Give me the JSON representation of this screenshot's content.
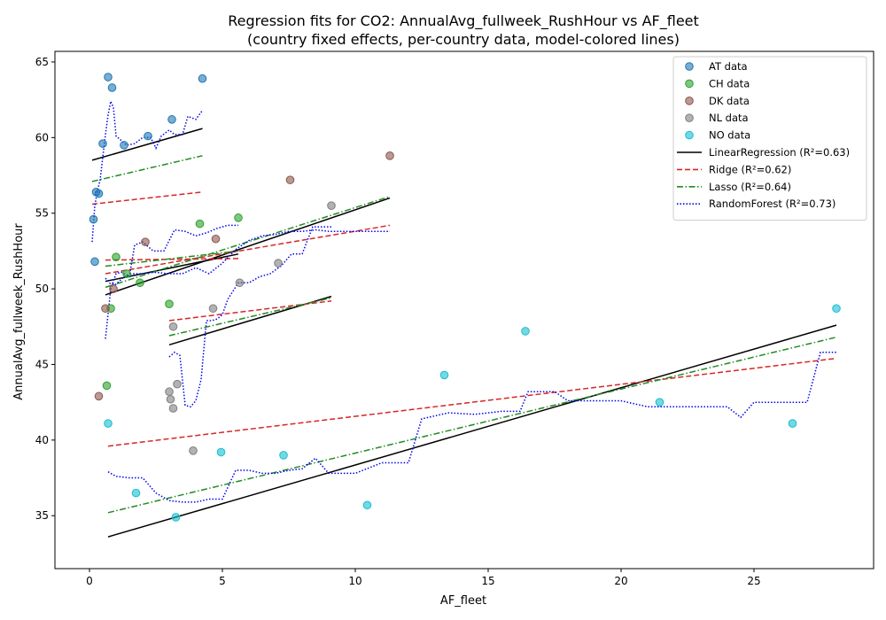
{
  "chart_data": {
    "type": "scatter",
    "title": "Regression fits for CO2: AnnualAvg_fullweek_RushHour vs AF_fleet",
    "subtitle": "(country fixed effects, per-country data, model-colored lines)",
    "xlabel": "AF_fleet",
    "ylabel": "AnnualAvg_fullweek_RushHour",
    "xlim": [
      -1.3,
      29.5
    ],
    "ylim": [
      31.5,
      65.7
    ],
    "xticks": [
      0,
      5,
      10,
      15,
      20,
      25
    ],
    "yticks": [
      35,
      40,
      45,
      50,
      55,
      60,
      65
    ],
    "legend_position": "top-right",
    "series": [
      {
        "name": "AT data",
        "kind": "scatter",
        "color": "#1f77b4",
        "x": [
          0.15,
          0.2,
          0.25,
          0.35,
          0.5,
          0.7,
          0.85,
          1.3,
          2.2,
          3.1,
          4.25
        ],
        "y": [
          54.6,
          51.8,
          56.4,
          56.3,
          59.6,
          64.0,
          63.3,
          59.5,
          60.1,
          61.2,
          63.9
        ]
      },
      {
        "name": "CH data",
        "kind": "scatter",
        "color": "#2ca02c",
        "x": [
          0.65,
          0.8,
          1.0,
          1.4,
          1.9,
          3.0,
          4.15,
          5.6
        ],
        "y": [
          43.6,
          48.7,
          52.1,
          51.0,
          50.4,
          49.0,
          54.3,
          54.7
        ]
      },
      {
        "name": "DK data",
        "kind": "scatter",
        "color": "#8c564b",
        "x": [
          0.35,
          0.6,
          0.9,
          2.1,
          4.75,
          7.55,
          11.3
        ],
        "y": [
          42.9,
          48.7,
          50.0,
          53.1,
          53.3,
          57.2,
          58.8
        ]
      },
      {
        "name": "NL data",
        "kind": "scatter",
        "color": "#7f7f7f",
        "x": [
          3.0,
          3.05,
          3.15,
          3.15,
          3.3,
          3.9,
          4.65,
          5.65,
          7.1,
          9.1
        ],
        "y": [
          43.2,
          42.7,
          42.1,
          47.5,
          43.7,
          39.3,
          48.7,
          50.4,
          51.7,
          55.5
        ]
      },
      {
        "name": "NO data",
        "kind": "scatter",
        "color": "#17becf",
        "x": [
          0.7,
          1.75,
          3.25,
          4.95,
          7.3,
          10.45,
          13.35,
          16.4,
          21.45,
          26.45,
          28.1
        ],
        "y": [
          41.1,
          36.5,
          34.9,
          39.2,
          39.0,
          35.7,
          44.3,
          47.2,
          42.5,
          41.1,
          48.7
        ]
      },
      {
        "name": "LinearRegression (R²=0.63)",
        "kind": "line",
        "style": "solid",
        "color": "#000000",
        "segments": [
          {
            "x": [
              0.1,
              4.25
            ],
            "y": [
              58.5,
              60.6
            ]
          },
          {
            "x": [
              0.6,
              5.6
            ],
            "y": [
              50.5,
              52.3
            ]
          },
          {
            "x": [
              0.6,
              11.3
            ],
            "y": [
              49.6,
              56.0
            ]
          },
          {
            "x": [
              3.0,
              9.1
            ],
            "y": [
              46.3,
              49.5
            ]
          },
          {
            "x": [
              0.7,
              28.1
            ],
            "y": [
              33.6,
              47.6
            ]
          }
        ]
      },
      {
        "name": "Ridge (R²=0.62)",
        "kind": "line",
        "style": "dashed",
        "color": "#d62728",
        "segments": [
          {
            "x": [
              0.1,
              4.25
            ],
            "y": [
              55.6,
              56.4
            ]
          },
          {
            "x": [
              0.6,
              5.6
            ],
            "y": [
              51.9,
              52.0
            ]
          },
          {
            "x": [
              0.6,
              11.3
            ],
            "y": [
              51.0,
              54.2
            ]
          },
          {
            "x": [
              3.0,
              9.1
            ],
            "y": [
              47.9,
              49.2
            ]
          },
          {
            "x": [
              0.7,
              28.1
            ],
            "y": [
              39.6,
              45.4
            ]
          }
        ]
      },
      {
        "name": "Lasso (R²=0.64)",
        "kind": "line",
        "style": "dashdot",
        "color": "#228b22",
        "segments": [
          {
            "x": [
              0.1,
              4.25
            ],
            "y": [
              57.1,
              58.8
            ]
          },
          {
            "x": [
              0.6,
              5.6
            ],
            "y": [
              51.5,
              52.5
            ]
          },
          {
            "x": [
              0.6,
              11.3
            ],
            "y": [
              50.1,
              56.1
            ]
          },
          {
            "x": [
              3.0,
              9.1
            ],
            "y": [
              46.9,
              49.4
            ]
          },
          {
            "x": [
              0.7,
              28.1
            ],
            "y": [
              35.2,
              46.8
            ]
          }
        ]
      },
      {
        "name": "RandomForest (R²=0.73)",
        "kind": "line",
        "style": "dotted",
        "color": "#0000ee",
        "segments": [
          {
            "x": [
              0.1,
              0.2,
              0.3,
              0.4,
              0.5,
              0.6,
              0.7,
              0.8,
              0.9,
              1.0,
              1.2,
              1.4,
              1.7,
              2.0,
              2.3,
              2.5,
              2.7,
              3.0,
              3.2,
              3.5,
              3.7,
              4.0,
              4.25
            ],
            "y": [
              53.1,
              55.5,
              56.5,
              57.2,
              58.7,
              60.2,
              61.5,
              62.4,
              62.0,
              60.1,
              59.8,
              59.5,
              59.6,
              60.0,
              60.0,
              59.3,
              60.1,
              60.5,
              60.2,
              60.2,
              61.4,
              61.2,
              61.8
            ]
          },
          {
            "x": [
              0.6,
              0.8,
              1.0,
              1.2,
              1.5,
              1.7,
              2.0,
              2.4,
              2.8,
              3.2,
              3.6,
              4.0,
              4.4,
              4.8,
              5.2,
              5.6
            ],
            "y": [
              46.7,
              50.0,
              51.0,
              51.1,
              50.8,
              52.9,
              53.1,
              52.5,
              52.5,
              53.9,
              53.8,
              53.5,
              53.7,
              54.0,
              54.2,
              54.2
            ]
          },
          {
            "x": [
              0.6,
              0.8,
              1.0,
              1.3,
              1.6,
              2.0,
              2.4,
              3.0,
              3.5,
              4.0,
              4.5,
              5.0,
              5.5,
              6.0,
              6.5,
              7.0,
              7.5,
              8.0,
              8.5,
              9.0,
              10.0,
              11.3
            ],
            "y": [
              50.7,
              50.3,
              50.3,
              50.8,
              51.0,
              51.0,
              51.1,
              51.0,
              51.0,
              51.4,
              51.0,
              51.7,
              52.6,
              53.2,
              53.5,
              53.6,
              53.8,
              53.8,
              53.9,
              53.8,
              53.8,
              53.8
            ]
          },
          {
            "x": [
              3.0,
              3.2,
              3.4,
              3.6,
              3.8,
              4.0,
              4.2,
              4.4,
              4.6,
              4.8,
              5.0,
              5.2,
              5.6,
              6.0,
              6.4,
              6.8,
              7.2,
              7.6,
              8.0,
              8.4,
              9.1
            ],
            "y": [
              45.5,
              45.8,
              45.6,
              42.3,
              42.2,
              42.6,
              44.0,
              47.9,
              47.9,
              48.0,
              48.3,
              49.3,
              50.4,
              50.4,
              50.8,
              51.0,
              51.5,
              52.3,
              52.3,
              54.1,
              54.1
            ]
          },
          {
            "x": [
              0.7,
              1.0,
              1.5,
              2.0,
              2.5,
              3.0,
              3.5,
              4.0,
              4.5,
              5.0,
              5.5,
              6.0,
              6.5,
              7.0,
              7.5,
              8.0,
              8.5,
              9.0,
              10.0,
              11.0,
              12.0,
              12.5,
              13.5,
              14.5,
              15.5,
              16.2,
              16.5,
              17.5,
              18.0,
              19.0,
              20.0,
              21.0,
              22.0,
              23.0,
              24.0,
              24.5,
              25.0,
              26.5,
              27.0,
              27.5,
              28.1
            ],
            "y": [
              37.9,
              37.6,
              37.5,
              37.5,
              36.5,
              36.0,
              35.9,
              35.9,
              36.1,
              36.1,
              38.0,
              38.0,
              37.8,
              37.8,
              38.0,
              38.1,
              38.8,
              37.8,
              37.8,
              38.5,
              38.5,
              41.4,
              41.8,
              41.7,
              41.9,
              41.9,
              43.2,
              43.2,
              42.6,
              42.6,
              42.6,
              42.2,
              42.2,
              42.2,
              42.2,
              41.5,
              42.5,
              42.5,
              42.5,
              45.8,
              45.8
            ]
          }
        ]
      }
    ]
  }
}
